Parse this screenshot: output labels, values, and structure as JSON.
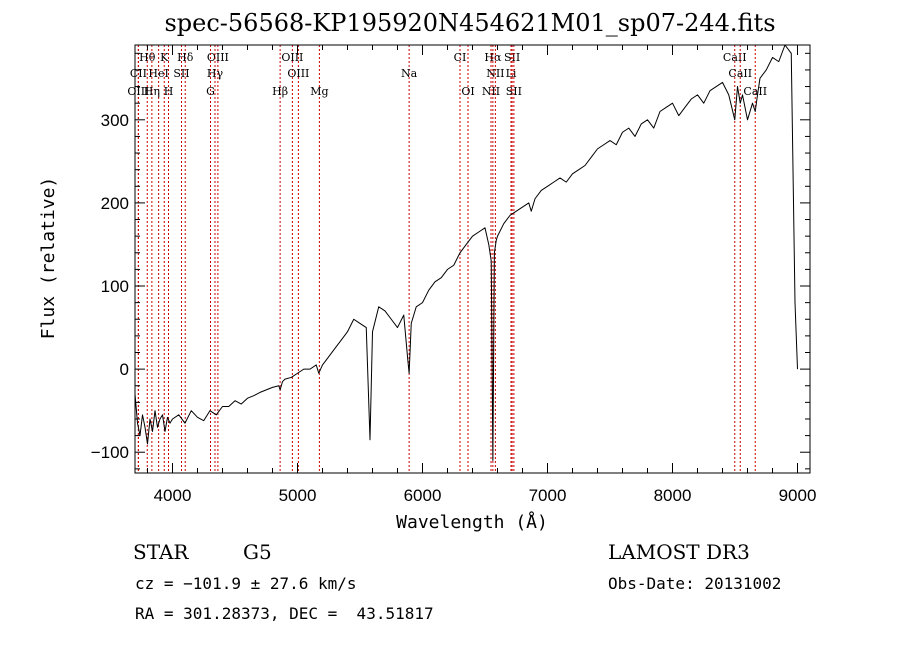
{
  "chart_data": {
    "type": "line",
    "title": "spec-56568-KP195920N454621M01_sp07-244.fits",
    "xlabel": "Wavelength (Å)",
    "ylabel": "Flux (relative)",
    "xlim": [
      3700,
      9100
    ],
    "ylim": [
      -125,
      390
    ],
    "xticks": [
      4000,
      5000,
      6000,
      7000,
      8000,
      9000
    ],
    "yticks": [
      -100,
      0,
      100,
      200,
      300
    ],
    "series": [
      {
        "name": "spectrum",
        "x": [
          3700,
          3720,
          3740,
          3760,
          3780,
          3800,
          3820,
          3840,
          3860,
          3880,
          3900,
          3920,
          3940,
          3960,
          3980,
          4000,
          4050,
          4100,
          4150,
          4200,
          4250,
          4300,
          4350,
          4400,
          4450,
          4500,
          4550,
          4600,
          4650,
          4700,
          4750,
          4800,
          4850,
          4861,
          4880,
          4900,
          4950,
          5000,
          5050,
          5100,
          5150,
          5170,
          5200,
          5250,
          5300,
          5350,
          5400,
          5450,
          5500,
          5550,
          5580,
          5600,
          5650,
          5700,
          5750,
          5800,
          5850,
          5880,
          5893,
          5910,
          5950,
          6000,
          6050,
          6100,
          6150,
          6200,
          6250,
          6300,
          6350,
          6400,
          6450,
          6500,
          6530,
          6550,
          6563,
          6575,
          6590,
          6600,
          6650,
          6700,
          6750,
          6800,
          6850,
          6870,
          6900,
          6950,
          7000,
          7050,
          7100,
          7150,
          7200,
          7250,
          7300,
          7350,
          7400,
          7450,
          7500,
          7550,
          7600,
          7650,
          7700,
          7750,
          7800,
          7850,
          7900,
          7950,
          8000,
          8050,
          8100,
          8150,
          8200,
          8250,
          8300,
          8350,
          8400,
          8450,
          8498,
          8520,
          8542,
          8560,
          8600,
          8640,
          8662,
          8680,
          8700,
          8750,
          8800,
          8850,
          8900,
          8950,
          8980,
          9000
        ],
        "values": [
          -30,
          -65,
          -80,
          -55,
          -70,
          -90,
          -60,
          -75,
          -50,
          -70,
          -60,
          -55,
          -75,
          -58,
          -65,
          -60,
          -55,
          -65,
          -50,
          -58,
          -62,
          -50,
          -55,
          -45,
          -45,
          -38,
          -42,
          -35,
          -32,
          -28,
          -25,
          -22,
          -20,
          -25,
          -15,
          -12,
          -10,
          -5,
          0,
          0,
          5,
          -5,
          5,
          15,
          25,
          35,
          45,
          60,
          55,
          50,
          -85,
          45,
          75,
          70,
          60,
          50,
          65,
          15,
          -5,
          55,
          75,
          80,
          95,
          105,
          110,
          120,
          125,
          140,
          150,
          160,
          165,
          170,
          150,
          130,
          -110,
          140,
          155,
          160,
          175,
          185,
          190,
          195,
          200,
          190,
          205,
          215,
          220,
          225,
          230,
          225,
          235,
          240,
          245,
          255,
          265,
          270,
          275,
          270,
          285,
          290,
          280,
          295,
          300,
          290,
          310,
          315,
          320,
          305,
          315,
          325,
          330,
          320,
          335,
          340,
          345,
          330,
          300,
          340,
          320,
          330,
          300,
          320,
          310,
          330,
          350,
          360,
          375,
          370,
          390,
          380,
          80,
          0
        ]
      }
    ],
    "lines": [
      {
        "name": "Hθ",
        "x": 3798,
        "row": 1
      },
      {
        "name": "K",
        "x": 3934,
        "row": 1
      },
      {
        "name": "Hδ",
        "x": 4102,
        "row": 1
      },
      {
        "name": "OIII",
        "x": 4363,
        "row": 1
      },
      {
        "name": "OIII",
        "x": 4959,
        "row": 1
      },
      {
        "name": "CI",
        "x": 6300,
        "row": 1
      },
      {
        "name": "Hα",
        "x": 6563,
        "row": 1
      },
      {
        "name": "SII",
        "x": 6717,
        "row": 1
      },
      {
        "name": "CaII",
        "x": 8498,
        "row": 1
      },
      {
        "name": "CII",
        "x": 3727,
        "row": 2
      },
      {
        "name": "HeI",
        "x": 3889,
        "row": 2
      },
      {
        "name": "SII",
        "x": 4072,
        "row": 2
      },
      {
        "name": "Hγ",
        "x": 4340,
        "row": 2
      },
      {
        "name": "OIII",
        "x": 5007,
        "row": 2
      },
      {
        "name": "Na",
        "x": 5893,
        "row": 2
      },
      {
        "name": "NII",
        "x": 6583,
        "row": 2
      },
      {
        "name": "Li",
        "x": 6708,
        "row": 2
      },
      {
        "name": "CaII",
        "x": 8542,
        "row": 2
      },
      {
        "name": "OIII",
        "x": 3727,
        "row": 3
      },
      {
        "name": "Hη",
        "x": 3835,
        "row": 3
      },
      {
        "name": "H",
        "x": 3968,
        "row": 3
      },
      {
        "name": "G",
        "x": 4304,
        "row": 3
      },
      {
        "name": "Hβ",
        "x": 4861,
        "row": 3
      },
      {
        "name": "Mg",
        "x": 5175,
        "row": 3
      },
      {
        "name": "OI",
        "x": 6364,
        "row": 3
      },
      {
        "name": "NII",
        "x": 6548,
        "row": 3
      },
      {
        "name": "SII",
        "x": 6731,
        "row": 3
      },
      {
        "name": "CaII",
        "x": 8662,
        "row": 3
      }
    ]
  },
  "info": {
    "class": "STAR",
    "subclass": "G5",
    "survey": "LAMOST DR3",
    "cz": "cz = −101.9 ± 27.6 km/s",
    "obs_date": "Obs-Date: 20131002",
    "radec": "RA = 301.28373, DEC =  43.51817"
  },
  "colors": {
    "spectrum": "#000000",
    "line_marker": "#cc0000",
    "axis": "#000000"
  }
}
